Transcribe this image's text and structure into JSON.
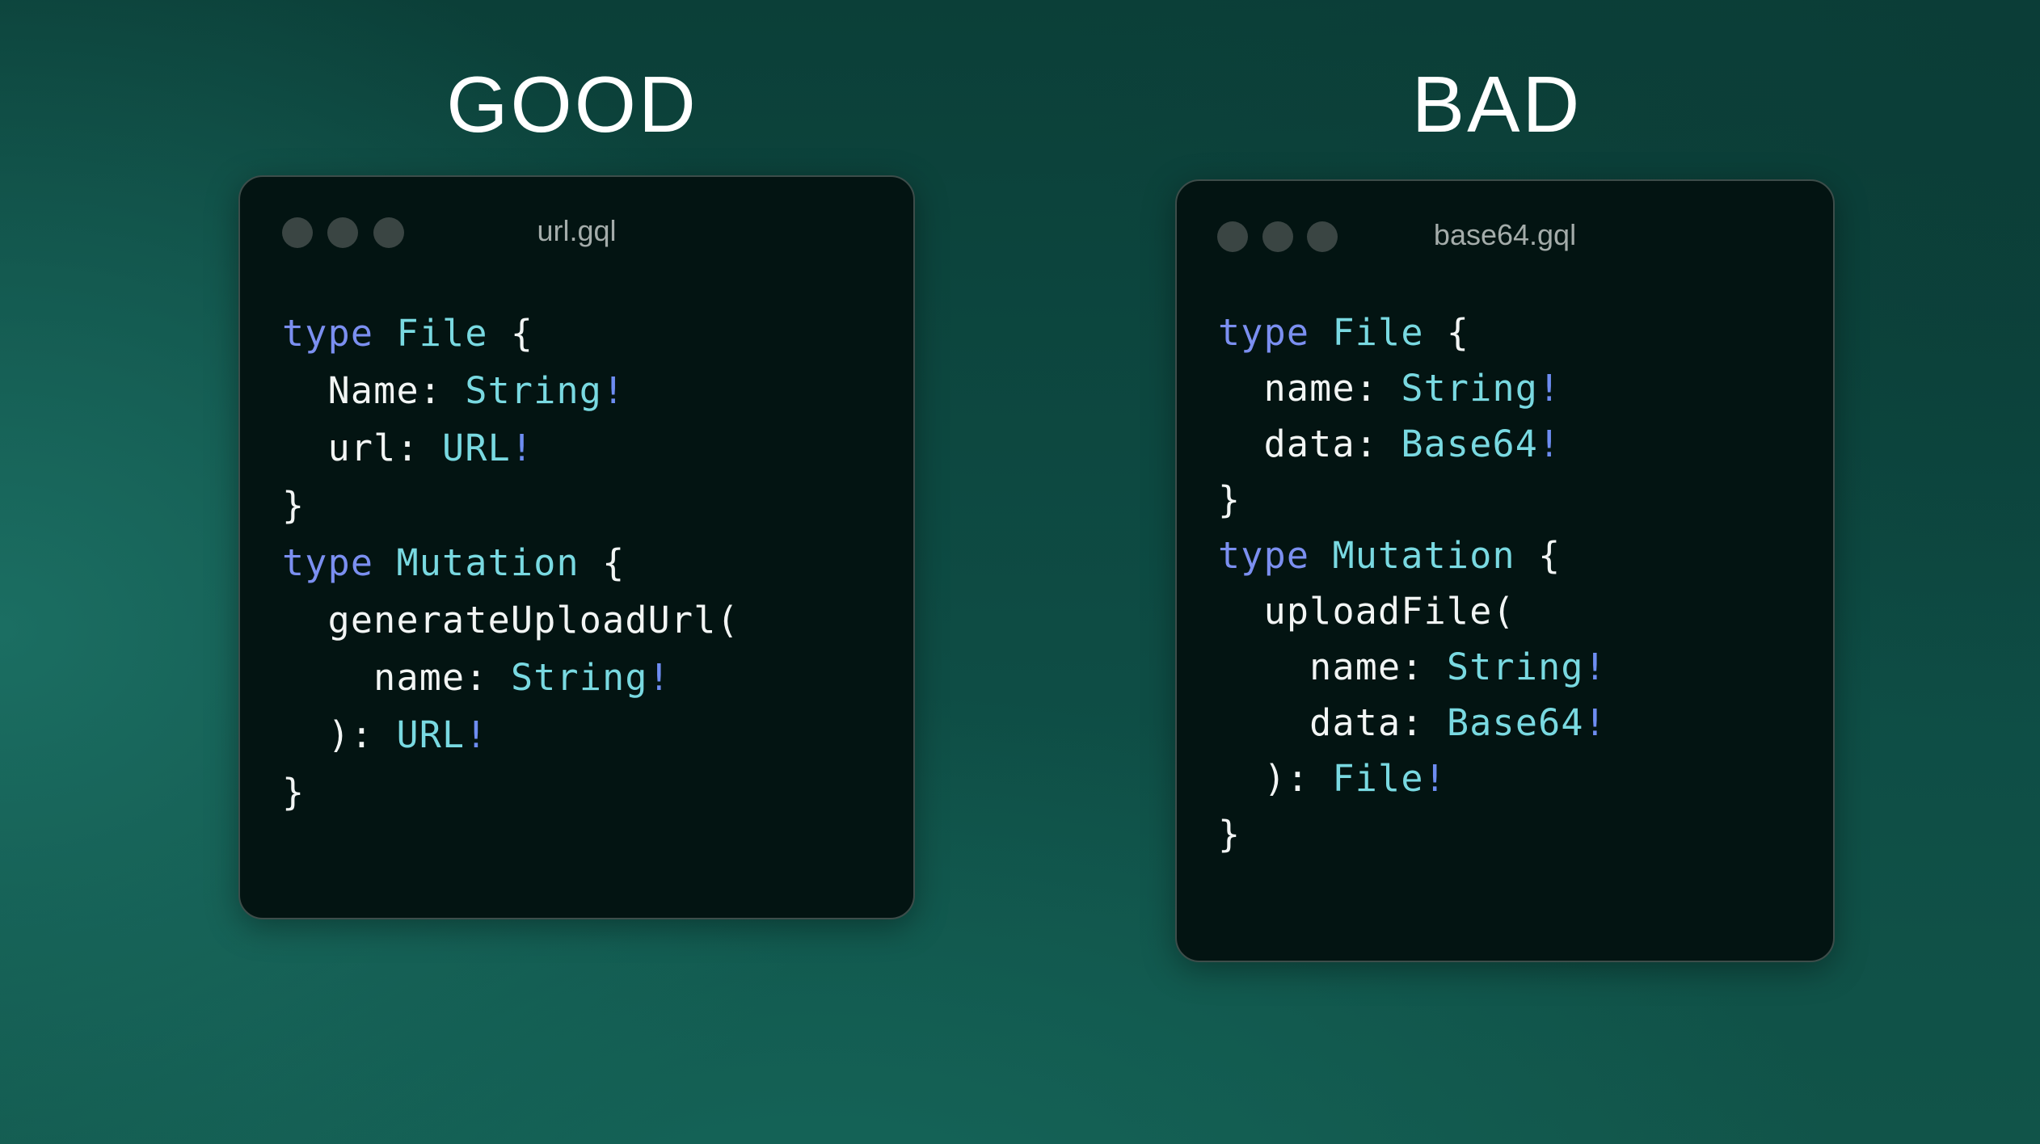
{
  "colors": {
    "keyword": "#7b8ff0",
    "type": "#79d9e1",
    "bang": "#6e8df2",
    "text": "#f2f5f4",
    "panel_bg": "#031412"
  },
  "panels": [
    {
      "heading": "GOOD",
      "filename": "url.gql",
      "window_controls": [
        "dot",
        "dot",
        "dot"
      ],
      "lines": [
        [
          {
            "t": "type",
            "k": "kw"
          },
          {
            "t": " ",
            "k": "pl"
          },
          {
            "t": "File",
            "k": "ty"
          },
          {
            "t": " {",
            "k": "pl"
          }
        ],
        [
          {
            "t": "  Name: ",
            "k": "pl"
          },
          {
            "t": "String",
            "k": "ty"
          },
          {
            "t": "!",
            "k": "bang"
          }
        ],
        [
          {
            "t": "  url: ",
            "k": "pl"
          },
          {
            "t": "URL",
            "k": "ty"
          },
          {
            "t": "!",
            "k": "bang"
          }
        ],
        [
          {
            "t": "}",
            "k": "pl"
          }
        ],
        [
          {
            "t": "type",
            "k": "kw"
          },
          {
            "t": " ",
            "k": "pl"
          },
          {
            "t": "Mutation",
            "k": "ty"
          },
          {
            "t": " {",
            "k": "pl"
          }
        ],
        [
          {
            "t": "  generateUploadUrl(",
            "k": "pl"
          }
        ],
        [
          {
            "t": "    name: ",
            "k": "pl"
          },
          {
            "t": "String",
            "k": "ty"
          },
          {
            "t": "!",
            "k": "bang"
          }
        ],
        [
          {
            "t": "  ): ",
            "k": "pl"
          },
          {
            "t": "URL",
            "k": "ty"
          },
          {
            "t": "!",
            "k": "bang"
          }
        ],
        [
          {
            "t": "}",
            "k": "pl"
          }
        ]
      ]
    },
    {
      "heading": "BAD",
      "filename": "base64.gql",
      "window_controls": [
        "dot",
        "dot",
        "dot"
      ],
      "lines": [
        [
          {
            "t": "type",
            "k": "kw"
          },
          {
            "t": " ",
            "k": "pl"
          },
          {
            "t": "File",
            "k": "ty"
          },
          {
            "t": " {",
            "k": "pl"
          }
        ],
        [
          {
            "t": "  name: ",
            "k": "pl"
          },
          {
            "t": "String",
            "k": "ty"
          },
          {
            "t": "!",
            "k": "bang"
          }
        ],
        [
          {
            "t": "  data: ",
            "k": "pl"
          },
          {
            "t": "Base64",
            "k": "ty"
          },
          {
            "t": "!",
            "k": "bang"
          }
        ],
        [
          {
            "t": "}",
            "k": "pl"
          }
        ],
        [
          {
            "t": "type",
            "k": "kw"
          },
          {
            "t": " ",
            "k": "pl"
          },
          {
            "t": "Mutation",
            "k": "ty"
          },
          {
            "t": " {",
            "k": "pl"
          }
        ],
        [
          {
            "t": "  uploadFile(",
            "k": "pl"
          }
        ],
        [
          {
            "t": "    name: ",
            "k": "pl"
          },
          {
            "t": "String",
            "k": "ty"
          },
          {
            "t": "!",
            "k": "bang"
          }
        ],
        [
          {
            "t": "    data: ",
            "k": "pl"
          },
          {
            "t": "Base64",
            "k": "ty"
          },
          {
            "t": "!",
            "k": "bang"
          }
        ],
        [
          {
            "t": "  ): ",
            "k": "pl"
          },
          {
            "t": "File",
            "k": "ty"
          },
          {
            "t": "!",
            "k": "bang"
          }
        ],
        [
          {
            "t": "}",
            "k": "pl"
          }
        ]
      ]
    }
  ]
}
